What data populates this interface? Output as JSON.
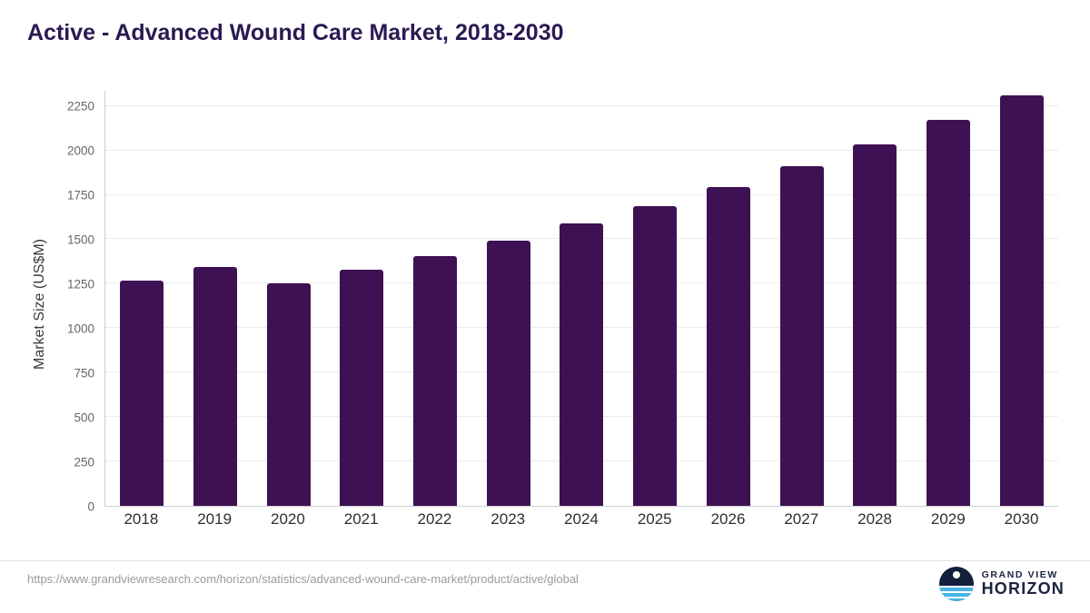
{
  "title": "Active - Advanced Wound Care Market, 2018-2030",
  "chart_data": {
    "type": "bar",
    "title": "Active - Advanced Wound Care Market, 2018-2030",
    "categories": [
      "2018",
      "2019",
      "2020",
      "2021",
      "2022",
      "2023",
      "2024",
      "2025",
      "2026",
      "2027",
      "2028",
      "2029",
      "2030"
    ],
    "values": [
      1265,
      1345,
      1250,
      1330,
      1405,
      1490,
      1590,
      1685,
      1795,
      1910,
      2035,
      2170,
      2310
    ],
    "xlabel": "",
    "ylabel": "Market Size (US$M)",
    "yticks": [
      0,
      250,
      500,
      750,
      1000,
      1250,
      1500,
      1750,
      2000,
      2250
    ],
    "ylim": [
      0,
      2335
    ],
    "bar_color": "#3e1154",
    "grid": true,
    "legend_position": "none"
  },
  "footer": {
    "source_url": "https://www.grandviewresearch.com/horizon/statistics/advanced-wound-care-market/product/active/global",
    "logo": {
      "line1": "GRAND VIEW",
      "line2": "HORIZON"
    }
  }
}
